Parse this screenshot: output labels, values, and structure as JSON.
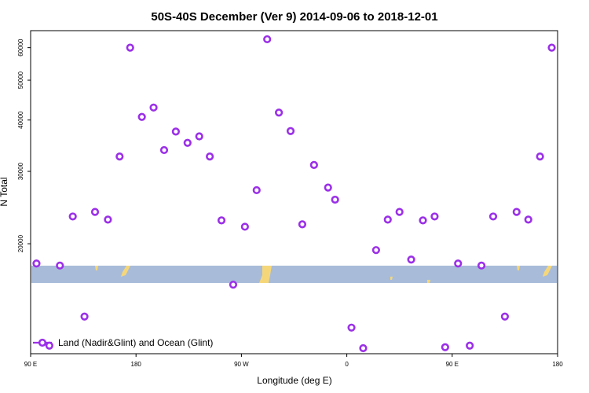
{
  "chart_data": {
    "type": "scatter",
    "title": "50S-40S December (Ver 9)   2014-09-06 to 2018-12-01",
    "xlabel": "Longitude (deg E)",
    "ylabel": "N Total",
    "x_ticks": [
      {
        "value": 90,
        "label": "90 E"
      },
      {
        "value": 180,
        "label": "180"
      },
      {
        "value": 270,
        "label": "90 W"
      },
      {
        "value": 360,
        "label": "0"
      },
      {
        "value": 450,
        "label": "90 E"
      },
      {
        "value": 540,
        "label": "180"
      }
    ],
    "y_ticks": [
      {
        "value": 20000,
        "label": "20000"
      },
      {
        "value": 30000,
        "label": "30000"
      },
      {
        "value": 40000,
        "label": "40000"
      },
      {
        "value": 50000,
        "label": "50000"
      },
      {
        "value": 60000,
        "label": "60000"
      }
    ],
    "xlim": [
      90,
      540
    ],
    "ylim_log": [
      10800,
      66000
    ],
    "series": [
      {
        "name": "Land (Nadir&Glint) and Ocean (Glint)",
        "color": "#9b30e8",
        "x": [
          95,
          106,
          115,
          126,
          136,
          145,
          156,
          166,
          175,
          185,
          195,
          204,
          214,
          224,
          234,
          243,
          253,
          263,
          273,
          283,
          292,
          302,
          312,
          322,
          332,
          344,
          350,
          364,
          374,
          385,
          395,
          405,
          415,
          425,
          435,
          444,
          455,
          465,
          475,
          485,
          495,
          505,
          515,
          525,
          535
        ],
        "y": [
          17900,
          11300,
          17700,
          23300,
          13300,
          23900,
          22900,
          32600,
          60000,
          40700,
          42900,
          33800,
          37500,
          35200,
          36500,
          32600,
          22800,
          15900,
          22000,
          27000,
          62900,
          41700,
          37600,
          22300,
          31100,
          27400,
          25600,
          12500,
          11000,
          19300,
          22900,
          23900,
          18300,
          22800,
          23300,
          11200,
          17900,
          11300,
          17700,
          23300,
          13300,
          23900,
          22900,
          32600,
          60000
        ]
      }
    ],
    "legend": {
      "position": "bottom-left",
      "label": "Land (Nadir&Glint) and Ocean (Glint)"
    },
    "colors": {
      "ocean_band": "#a8bbd9",
      "land_blob": "#f5d77a",
      "marker": "#9b30e8",
      "frame": "#000000"
    }
  }
}
